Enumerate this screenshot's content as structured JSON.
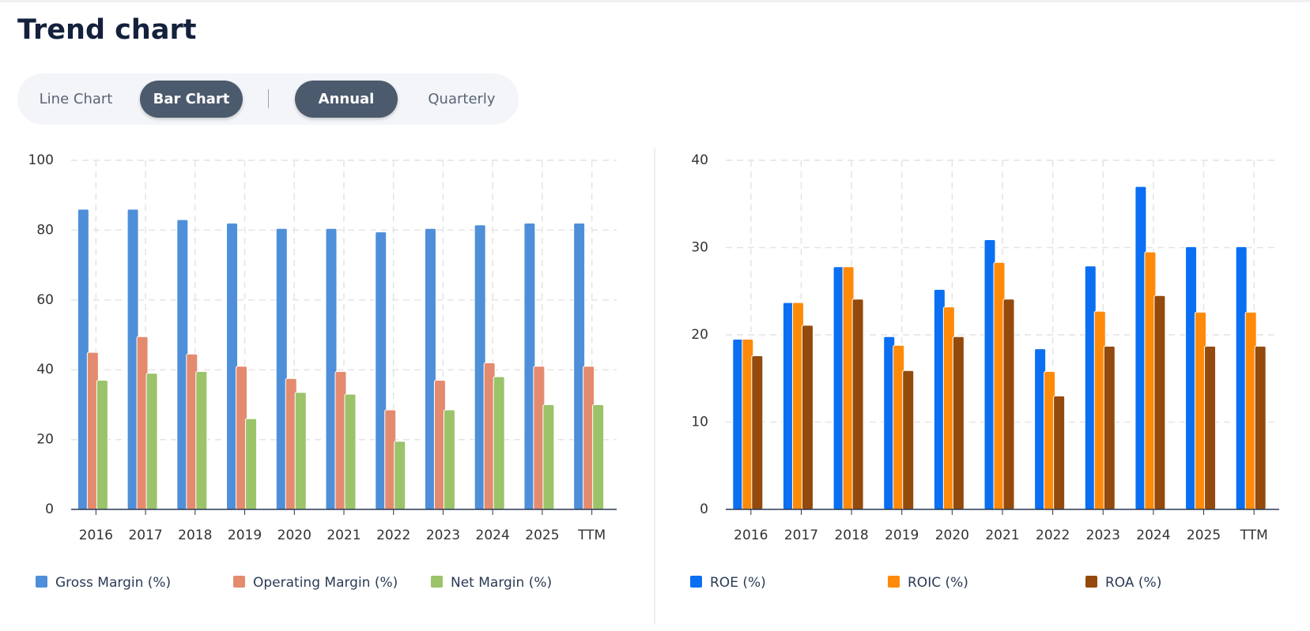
{
  "header": {
    "title": "Trend chart"
  },
  "toggles": {
    "chart_type": [
      "Line Chart",
      "Bar Chart"
    ],
    "period": [
      "Annual",
      "Quarterly"
    ]
  },
  "chart_data": [
    {
      "type": "bar",
      "categories": [
        "2016",
        "2017",
        "2018",
        "2019",
        "2020",
        "2021",
        "2022",
        "2023",
        "2024",
        "2025",
        "TTM"
      ],
      "ylim": [
        0,
        100
      ],
      "yticks": [
        0,
        20,
        40,
        60,
        80,
        100
      ],
      "grid": true,
      "series": [
        {
          "name": "Gross Margin (%)",
          "color": "#4f8fd9",
          "values": [
            86,
            86,
            83,
            82,
            80.5,
            80.5,
            79.5,
            80.5,
            81.5,
            82,
            82
          ]
        },
        {
          "name": "Operating Margin (%)",
          "color": "#e48b6f",
          "values": [
            45,
            49.5,
            44.5,
            41,
            37.5,
            39.5,
            28.5,
            37,
            42,
            41,
            41
          ]
        },
        {
          "name": "Net Margin (%)",
          "color": "#9bc36a",
          "values": [
            37,
            39,
            39.5,
            26,
            33.5,
            33,
            19.5,
            28.5,
            38,
            30,
            30
          ]
        }
      ]
    },
    {
      "type": "bar",
      "categories": [
        "2016",
        "2017",
        "2018",
        "2019",
        "2020",
        "2021",
        "2022",
        "2023",
        "2024",
        "2025",
        "TTM"
      ],
      "ylim": [
        0,
        40
      ],
      "yticks": [
        0,
        10,
        20,
        30,
        40
      ],
      "grid": true,
      "series": [
        {
          "name": "ROE (%)",
          "color": "#0a6ff2",
          "values": [
            19.5,
            23.7,
            27.8,
            19.8,
            25.2,
            30.9,
            18.4,
            27.9,
            37,
            30.1,
            30.1
          ]
        },
        {
          "name": "ROIC (%)",
          "color": "#ff8a0a",
          "values": [
            19.5,
            23.7,
            27.8,
            18.8,
            23.2,
            28.3,
            15.8,
            22.7,
            29.5,
            22.6,
            22.6
          ]
        },
        {
          "name": "ROA (%)",
          "color": "#934a0c",
          "values": [
            17.6,
            21.1,
            24.1,
            15.9,
            19.8,
            24.1,
            13,
            18.7,
            24.5,
            18.7,
            18.7
          ]
        }
      ]
    }
  ]
}
